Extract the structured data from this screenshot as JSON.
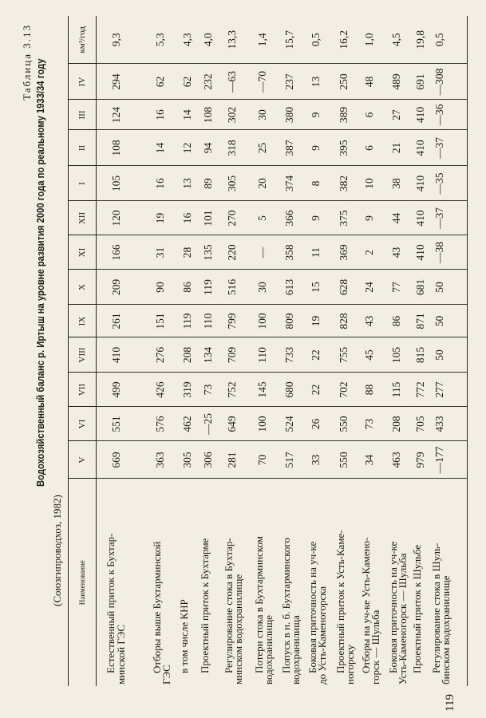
{
  "table_number": "Таблица 3.13",
  "title": "Водохозяйственный баланс р. Иртыш на уровне развития 2000 года по реальному 1933/34 году",
  "subtitle": "(Союзгипроводхоз, 1982)",
  "page_number": "119",
  "columns": [
    "Наименование",
    "V",
    "VI",
    "VII",
    "VIII",
    "IX",
    "X",
    "XI",
    "XII",
    "I",
    "II",
    "III",
    "IV",
    "км³/год"
  ],
  "rows": [
    {
      "name": [
        "Естественный приток к Бухтар-",
        "минской ГЭС"
      ],
      "values": [
        "669",
        "551",
        "499",
        "410",
        "261",
        "209",
        "166",
        "120",
        "105",
        "108",
        "124",
        "294",
        "9,3"
      ]
    },
    {
      "name": [
        "Отборы выше Бухтарминской",
        "ГЭС"
      ],
      "values": [
        "363",
        "576",
        "426",
        "276",
        "151",
        "90",
        "31",
        "19",
        "16",
        "14",
        "16",
        "62",
        "5,3"
      ]
    },
    {
      "name": [
        "в том числе КНР"
      ],
      "values": [
        "305",
        "462",
        "319",
        "208",
        "119",
        "86",
        "28",
        "16",
        "13",
        "12",
        "14",
        "62",
        "4,3"
      ]
    },
    {
      "name": [
        "Проектный приток к Бухтарме"
      ],
      "values": [
        "306",
        "—25",
        "73",
        "134",
        "110",
        "119",
        "135",
        "101",
        "89",
        "94",
        "108",
        "232",
        "4,0"
      ]
    },
    {
      "name": [
        "Регулирование стока в Бухтар-",
        "минском водохранилище"
      ],
      "values": [
        "281",
        "649",
        "752",
        "709",
        "799",
        "516",
        "220",
        "270",
        "305",
        "318",
        "302",
        "—63",
        "13,3"
      ]
    },
    {
      "name": [
        "Потери стока в Бухтарминском",
        "водохранилище"
      ],
      "values": [
        "70",
        "100",
        "145",
        "110",
        "100",
        "30",
        "—",
        "5",
        "20",
        "25",
        "30",
        "—70",
        "1,4"
      ]
    },
    {
      "name": [
        "Попуск в н. б. Бухтарминского",
        "водохранилища"
      ],
      "values": [
        "517",
        "524",
        "680",
        "733",
        "809",
        "613",
        "358",
        "366",
        "374",
        "387",
        "380",
        "237",
        "15,7"
      ]
    },
    {
      "name": [
        "Боковая приточность на уч-ке",
        "до Усть-Каменогорска"
      ],
      "values": [
        "33",
        "26",
        "22",
        "22",
        "19",
        "15",
        "11",
        "9",
        "8",
        "9",
        "9",
        "13",
        "0,5"
      ]
    },
    {
      "name": [
        "Проектный приток к Усть-Каме-",
        "ногорску"
      ],
      "values": [
        "550",
        "550",
        "702",
        "755",
        "828",
        "628",
        "369",
        "375",
        "382",
        "395",
        "389",
        "250",
        "16,2"
      ]
    },
    {
      "name": [
        "Отборы на уч-ке Усть-Камено-",
        "горск — Шульба"
      ],
      "values": [
        "34",
        "73",
        "88",
        "45",
        "43",
        "24",
        "2",
        "9",
        "10",
        "6",
        "6",
        "48",
        "1,0"
      ]
    },
    {
      "name": [
        "Боковая приточность на уч-ке",
        "Усть-Каменогорск — Шульба"
      ],
      "values": [
        "463",
        "208",
        "115",
        "105",
        "86",
        "77",
        "43",
        "44",
        "38",
        "21",
        "27",
        "489",
        "4,5"
      ]
    },
    {
      "name": [
        "Проектный приток к Шульбе"
      ],
      "values": [
        "979",
        "705",
        "772",
        "815",
        "871",
        "681",
        "410",
        "410",
        "410",
        "410",
        "410",
        "691",
        "19,8"
      ]
    },
    {
      "name": [
        "Регулирование стока в Шуль-",
        "бинском водохранилище"
      ],
      "values": [
        "—177",
        "433",
        "277",
        "50",
        "50",
        "50",
        "—38",
        "—37",
        "—35",
        "—37",
        "—36",
        "—308",
        "0,5"
      ]
    }
  ]
}
